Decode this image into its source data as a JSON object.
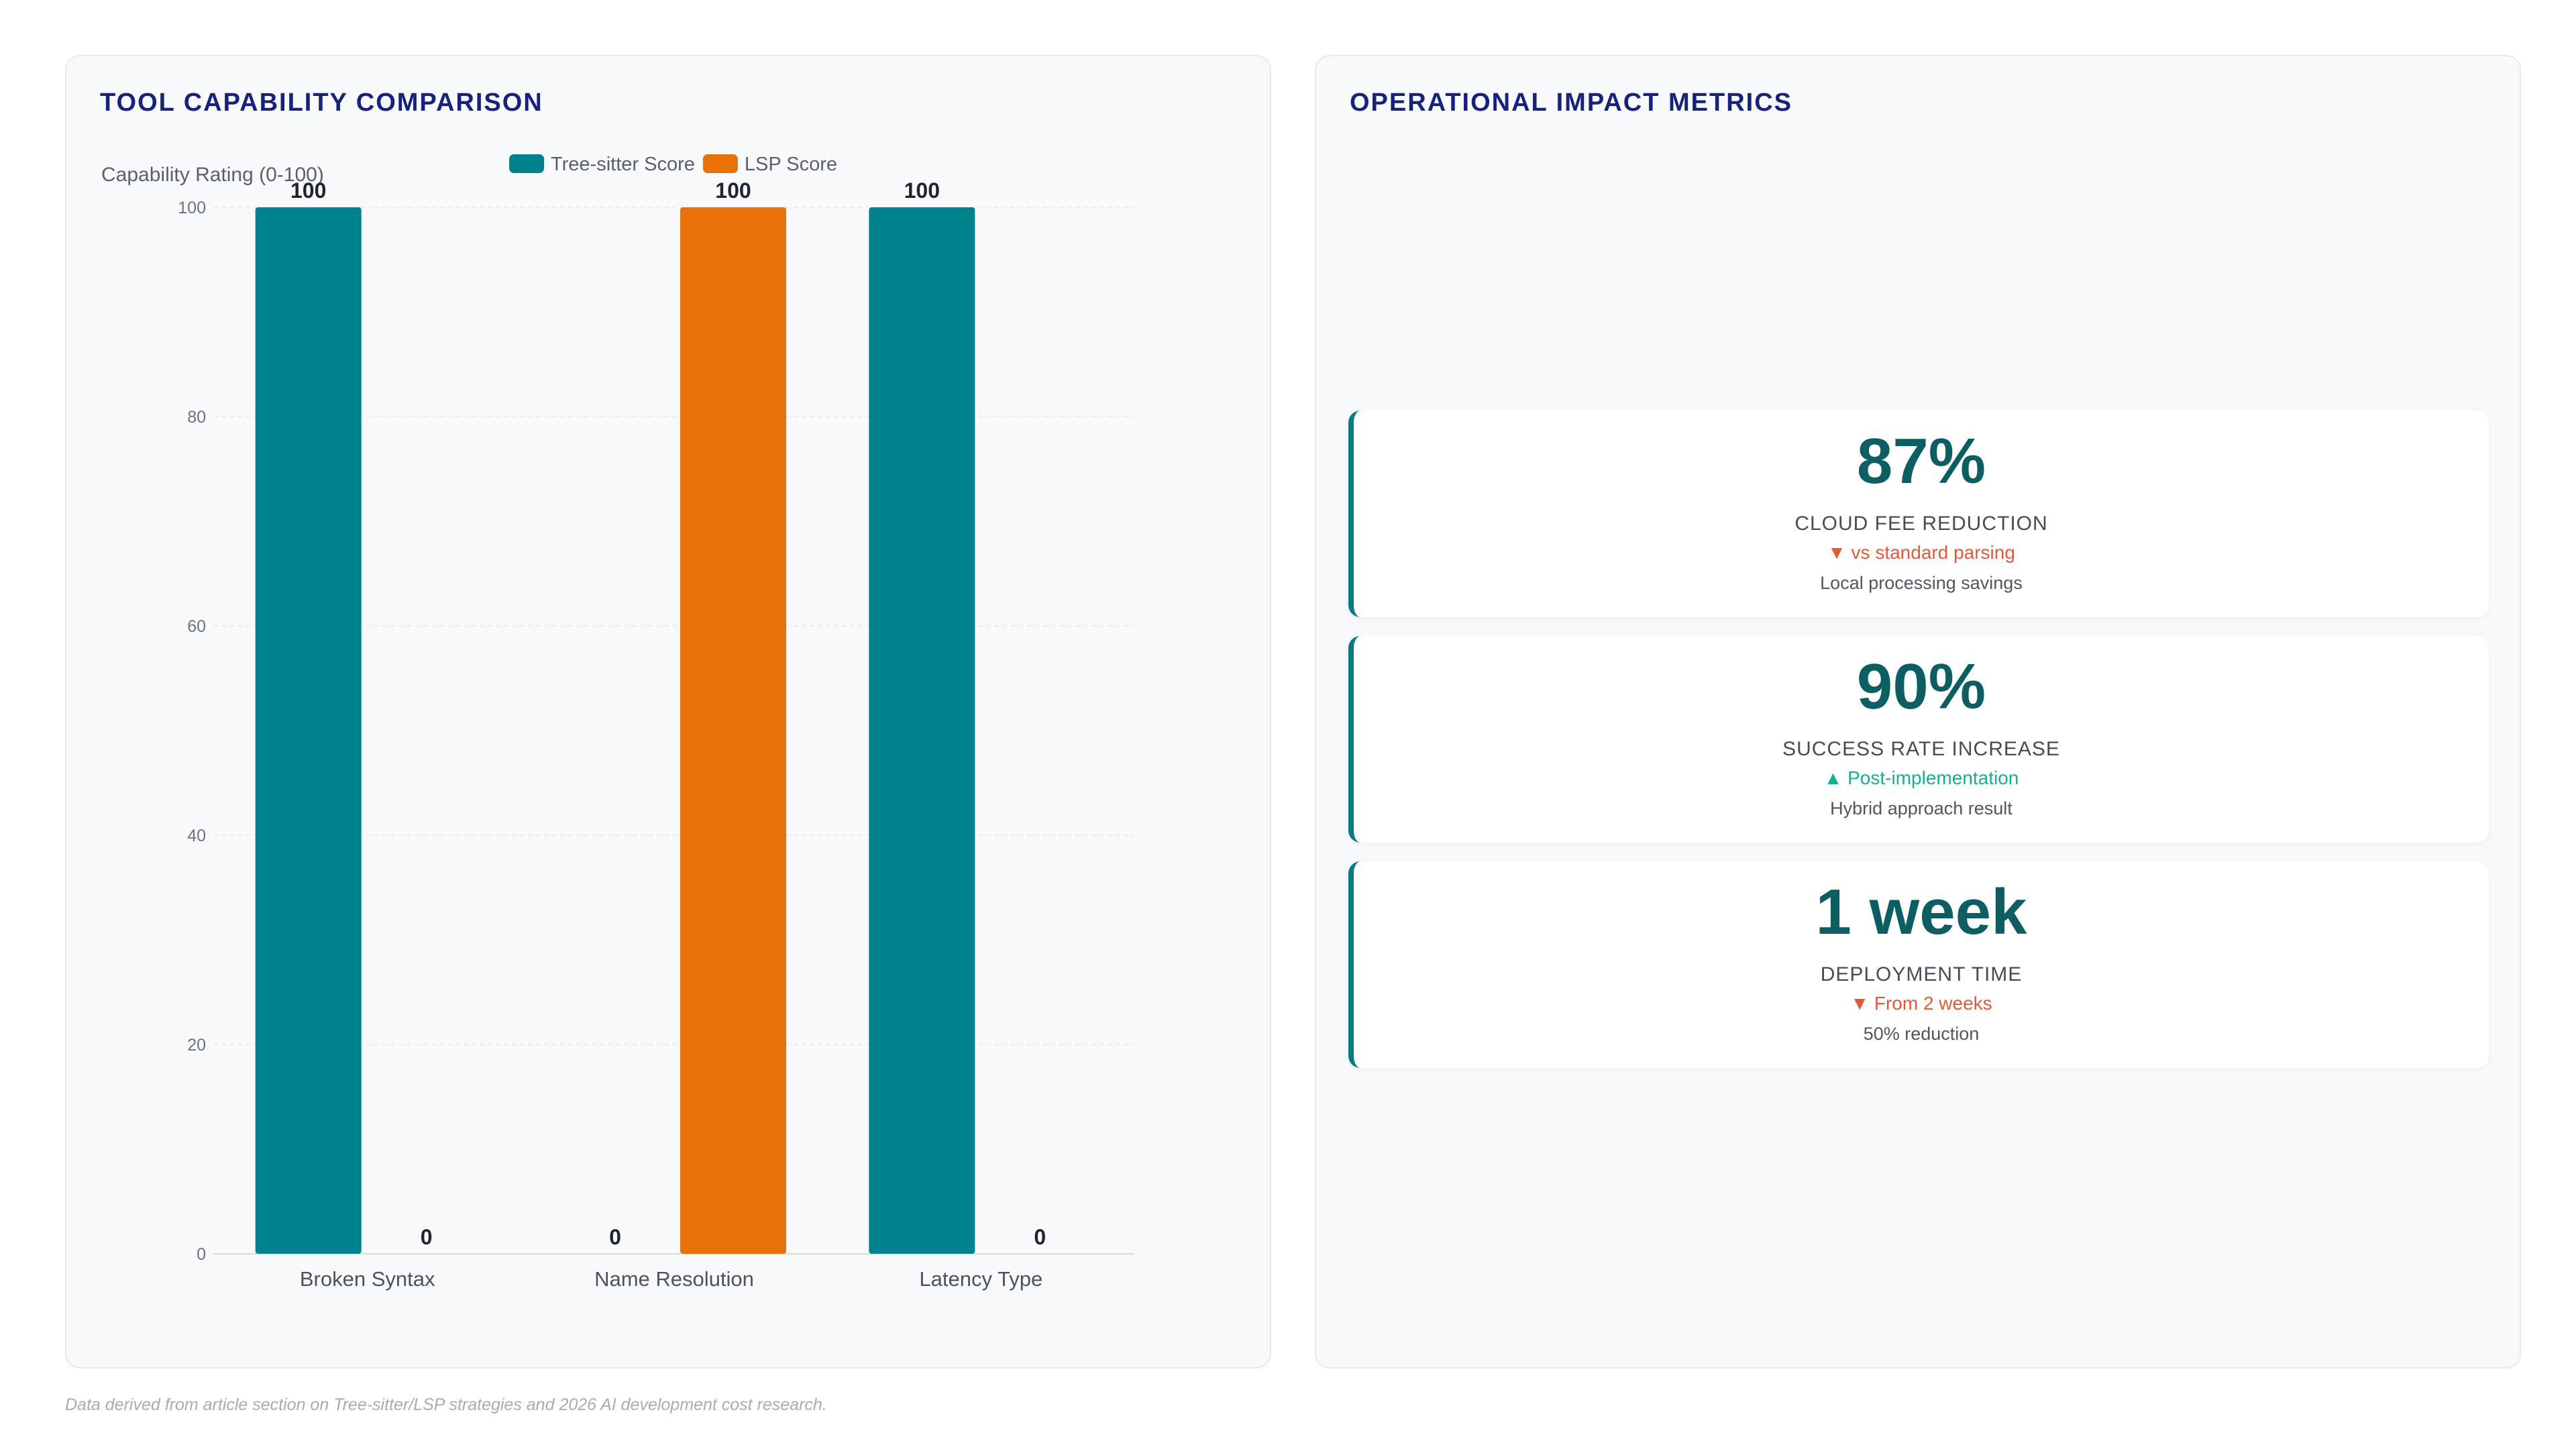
{
  "left_panel": {
    "title": "TOOL CAPABILITY COMPARISON"
  },
  "right_panel": {
    "title": "OPERATIONAL IMPACT METRICS",
    "metrics": [
      {
        "value": "87%",
        "label": "CLOUD FEE REDUCTION",
        "delta": "▼ vs standard parsing",
        "delta_direction": "down",
        "note": "Local processing savings"
      },
      {
        "value": "90%",
        "label": "SUCCESS RATE INCREASE",
        "delta": "▲ Post-implementation",
        "delta_direction": "up",
        "note": "Hybrid approach result"
      },
      {
        "value": "1 week",
        "label": "DEPLOYMENT TIME",
        "delta": "▼ From 2 weeks",
        "delta_direction": "down",
        "note": "50% reduction"
      }
    ]
  },
  "footnote": "Data derived from article section on Tree-sitter/LSP strategies and 2026 AI development cost research.",
  "colors": {
    "tree_sitter": "#00838f",
    "lsp": "#e8710a",
    "title": "#17237a",
    "metric_value": "#0c5e63",
    "delta_down": "#e05a3a",
    "delta_up": "#18b08a"
  },
  "chart_data": {
    "type": "bar",
    "categories": [
      "Broken Syntax",
      "Name Resolution",
      "Latency Type"
    ],
    "series": [
      {
        "name": "Tree-sitter Score",
        "values": [
          100,
          0,
          100
        ],
        "color": "#00838f"
      },
      {
        "name": "LSP Score",
        "values": [
          0,
          100,
          0
        ],
        "color": "#e8710a"
      }
    ],
    "ylabel": "Capability Rating (0-100)",
    "ylim": [
      0,
      100
    ],
    "yticks": [
      0,
      20,
      40,
      60,
      80,
      100
    ],
    "grid": true,
    "legend_position": "top-center",
    "data_labels": true
  }
}
